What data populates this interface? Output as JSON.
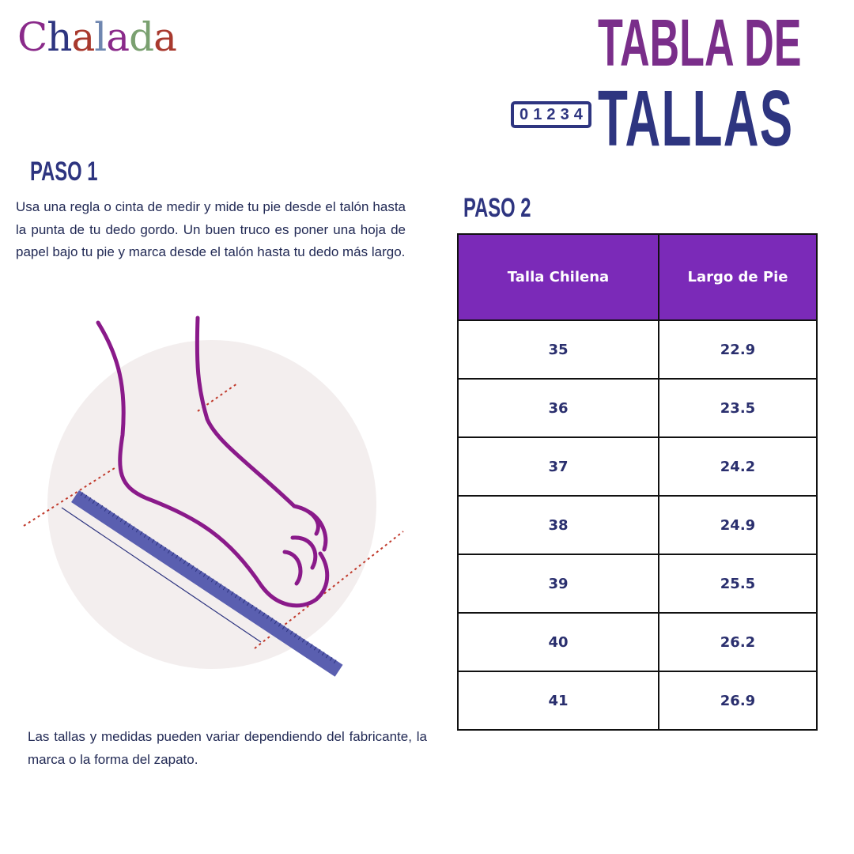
{
  "logo": {
    "letters": [
      "C",
      "h",
      "a",
      "l",
      "a",
      "d",
      "a"
    ],
    "colors": [
      "#8a2a8a",
      "#2e3580",
      "#a8392e",
      "#6f86b0",
      "#8a2a8a",
      "#7aa070",
      "#a8392e"
    ]
  },
  "title": {
    "line1": "TABLA DE",
    "line2": "TALLAS",
    "ruler_digits": [
      "0",
      "1",
      "2",
      "3",
      "4"
    ]
  },
  "step1": {
    "heading": "PASO 1",
    "text": "Usa una regla o cinta de medir y mide tu pie desde el talón hasta la punta de tu dedo gordo. Un buen truco es poner una hoja de papel bajo tu pie y marca desde el talón hasta tu dedo más largo."
  },
  "step2": {
    "heading": "PASO 2"
  },
  "table": {
    "headers": [
      "Talla Chilena",
      "Largo de Pie"
    ],
    "rows": [
      [
        "35",
        "22.9"
      ],
      [
        "36",
        "23.5"
      ],
      [
        "37",
        "24.2"
      ],
      [
        "38",
        "24.9"
      ],
      [
        "39",
        "25.5"
      ],
      [
        "40",
        "26.2"
      ],
      [
        "41",
        "26.9"
      ]
    ]
  },
  "note": "Las tallas y medidas pueden variar dependiendo del fabricante, la marca o la forma del zapato.",
  "colors": {
    "purple": "#7a2e8a",
    "navy": "#2e3580",
    "header_bg": "#7b2ab8"
  }
}
